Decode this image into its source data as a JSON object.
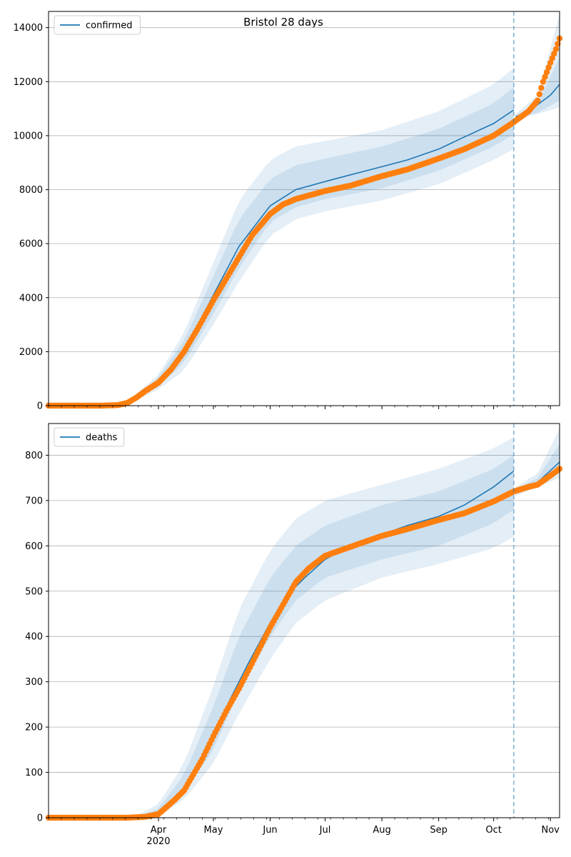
{
  "figure": {
    "title": "Bristol 28 days"
  },
  "colors": {
    "model": "#1f77b4",
    "observed": "#ff7f0e",
    "band": "#1f77b4",
    "grid": "#b0b0b0",
    "forecast_line": "#1f77b4"
  },
  "chart_data": [
    {
      "type": "line",
      "name": "confirmed-panel",
      "legend": "confirmed",
      "legend_position": "top-left",
      "grid": "y",
      "x_axis": {
        "type": "date",
        "range": [
          "2020-02-01",
          "2020-11-06"
        ],
        "ticks": [
          {
            "date": "2020-04-01",
            "label": "Apr"
          },
          {
            "date": "2020-05-01",
            "label": "May"
          },
          {
            "date": "2020-06-01",
            "label": "Jun"
          },
          {
            "date": "2020-07-01",
            "label": "Jul"
          },
          {
            "date": "2020-08-01",
            "label": "Aug"
          },
          {
            "date": "2020-09-01",
            "label": "Sep"
          },
          {
            "date": "2020-10-01",
            "label": "Oct"
          },
          {
            "date": "2020-11-01",
            "label": "Nov"
          }
        ],
        "year_label": "2020"
      },
      "y_axis": {
        "range": [
          0,
          14600
        ],
        "ticks": [
          0,
          2000,
          4000,
          6000,
          8000,
          10000,
          12000,
          14000
        ]
      },
      "forecast_start": "2020-10-12",
      "model_line": [
        [
          "2020-02-01",
          0
        ],
        [
          "2020-03-01",
          0
        ],
        [
          "2020-03-15",
          100
        ],
        [
          "2020-03-25",
          500
        ],
        [
          "2020-04-01",
          900
        ],
        [
          "2020-04-15",
          2000
        ],
        [
          "2020-05-01",
          4100
        ],
        [
          "2020-05-15",
          5900
        ],
        [
          "2020-06-01",
          7400
        ],
        [
          "2020-06-15",
          8000
        ],
        [
          "2020-07-01",
          8300
        ],
        [
          "2020-07-15",
          8550
        ],
        [
          "2020-08-01",
          8850
        ],
        [
          "2020-08-15",
          9100
        ],
        [
          "2020-09-01",
          9500
        ],
        [
          "2020-09-15",
          9950
        ],
        [
          "2020-10-01",
          10450
        ],
        [
          "2020-10-12",
          10950
        ],
        [
          "2020-10-13",
          10700
        ],
        [
          "2020-10-20",
          10900
        ],
        [
          "2020-11-01",
          11500
        ],
        [
          "2020-11-06",
          11900
        ]
      ],
      "bands": [
        {
          "upper": [
            [
              "2020-02-01",
              0
            ],
            [
              "2020-03-15",
              150
            ],
            [
              "2020-04-01",
              1150
            ],
            [
              "2020-04-15",
              2700
            ],
            [
              "2020-05-01",
              5300
            ],
            [
              "2020-05-15",
              7600
            ],
            [
              "2020-06-01",
              9100
            ],
            [
              "2020-06-15",
              9600
            ],
            [
              "2020-07-01",
              9800
            ],
            [
              "2020-08-01",
              10200
            ],
            [
              "2020-09-01",
              10900
            ],
            [
              "2020-10-01",
              11900
            ],
            [
              "2020-10-12",
              12500
            ],
            [
              "2020-10-13",
              10800
            ],
            [
              "2020-10-25",
              11500
            ],
            [
              "2020-11-06",
              14500
            ]
          ],
          "lower": [
            [
              "2020-02-01",
              0
            ],
            [
              "2020-03-15",
              50
            ],
            [
              "2020-04-01",
              600
            ],
            [
              "2020-04-15",
              1300
            ],
            [
              "2020-05-01",
              3000
            ],
            [
              "2020-05-15",
              4600
            ],
            [
              "2020-06-01",
              6300
            ],
            [
              "2020-06-15",
              6900
            ],
            [
              "2020-07-01",
              7200
            ],
            [
              "2020-08-01",
              7600
            ],
            [
              "2020-09-01",
              8200
            ],
            [
              "2020-10-01",
              9100
            ],
            [
              "2020-10-12",
              9500
            ],
            [
              "2020-10-13",
              10600
            ],
            [
              "2020-10-25",
              10800
            ],
            [
              "2020-11-06",
              11050
            ]
          ]
        },
        {
          "upper": [
            [
              "2020-02-01",
              0
            ],
            [
              "2020-03-15",
              120
            ],
            [
              "2020-04-01",
              1050
            ],
            [
              "2020-04-15",
              2400
            ],
            [
              "2020-05-01",
              4800
            ],
            [
              "2020-05-15",
              6900
            ],
            [
              "2020-06-01",
              8400
            ],
            [
              "2020-06-15",
              8900
            ],
            [
              "2020-07-01",
              9150
            ],
            [
              "2020-08-01",
              9600
            ],
            [
              "2020-09-01",
              10250
            ],
            [
              "2020-10-01",
              11200
            ],
            [
              "2020-10-12",
              11800
            ],
            [
              "2020-10-13",
              10750
            ],
            [
              "2020-10-25",
              11200
            ],
            [
              "2020-11-06",
              12900
            ]
          ],
          "lower": [
            [
              "2020-02-01",
              0
            ],
            [
              "2020-03-15",
              70
            ],
            [
              "2020-04-01",
              700
            ],
            [
              "2020-04-15",
              1600
            ],
            [
              "2020-05-01",
              3400
            ],
            [
              "2020-05-15",
              5100
            ],
            [
              "2020-06-01",
              6800
            ],
            [
              "2020-06-15",
              7350
            ],
            [
              "2020-07-01",
              7650
            ],
            [
              "2020-08-01",
              8050
            ],
            [
              "2020-09-01",
              8700
            ],
            [
              "2020-10-01",
              9600
            ],
            [
              "2020-10-12",
              10050
            ],
            [
              "2020-10-13",
              10650
            ],
            [
              "2020-10-25",
              10850
            ],
            [
              "2020-11-06",
              11300
            ]
          ]
        }
      ],
      "observed": [
        [
          "2020-02-01",
          0
        ],
        [
          "2020-03-01",
          0
        ],
        [
          "2020-03-10",
          20
        ],
        [
          "2020-03-15",
          100
        ],
        [
          "2020-03-20",
          300
        ],
        [
          "2020-03-25",
          550
        ],
        [
          "2020-04-01",
          850
        ],
        [
          "2020-04-08",
          1350
        ],
        [
          "2020-04-15",
          2000
        ],
        [
          "2020-04-22",
          2800
        ],
        [
          "2020-05-01",
          3900
        ],
        [
          "2020-05-08",
          4700
        ],
        [
          "2020-05-15",
          5500
        ],
        [
          "2020-05-22",
          6300
        ],
        [
          "2020-06-01",
          7100
        ],
        [
          "2020-06-08",
          7450
        ],
        [
          "2020-06-15",
          7650
        ],
        [
          "2020-07-01",
          7950
        ],
        [
          "2020-07-15",
          8150
        ],
        [
          "2020-08-01",
          8500
        ],
        [
          "2020-08-15",
          8750
        ],
        [
          "2020-09-01",
          9150
        ],
        [
          "2020-09-15",
          9500
        ],
        [
          "2020-10-01",
          10000
        ],
        [
          "2020-10-12",
          10500
        ],
        [
          "2020-10-20",
          10900
        ],
        [
          "2020-10-25",
          11300
        ],
        [
          "2020-10-28",
          12000
        ],
        [
          "2020-11-01",
          12700
        ],
        [
          "2020-11-04",
          13200
        ],
        [
          "2020-11-06",
          13600
        ]
      ]
    },
    {
      "type": "line",
      "name": "deaths-panel",
      "legend": "deaths",
      "legend_position": "top-left",
      "grid": "y",
      "x_axis": {
        "type": "date",
        "range": [
          "2020-02-01",
          "2020-11-06"
        ],
        "ticks": [
          {
            "date": "2020-04-01",
            "label": "Apr"
          },
          {
            "date": "2020-05-01",
            "label": "May"
          },
          {
            "date": "2020-06-01",
            "label": "Jun"
          },
          {
            "date": "2020-07-01",
            "label": "Jul"
          },
          {
            "date": "2020-08-01",
            "label": "Aug"
          },
          {
            "date": "2020-09-01",
            "label": "Sep"
          },
          {
            "date": "2020-10-01",
            "label": "Oct"
          },
          {
            "date": "2020-11-01",
            "label": "Nov"
          }
        ],
        "year_label": "2020"
      },
      "y_axis": {
        "range": [
          0,
          870
        ],
        "ticks": [
          0,
          100,
          200,
          300,
          400,
          500,
          600,
          700,
          800
        ]
      },
      "forecast_start": "2020-10-12",
      "model_line": [
        [
          "2020-02-01",
          0
        ],
        [
          "2020-03-20",
          0
        ],
        [
          "2020-04-01",
          10
        ],
        [
          "2020-04-10",
          40
        ],
        [
          "2020-04-20",
          90
        ],
        [
          "2020-05-01",
          180
        ],
        [
          "2020-05-10",
          260
        ],
        [
          "2020-05-20",
          340
        ],
        [
          "2020-06-01",
          430
        ],
        [
          "2020-06-10",
          490
        ],
        [
          "2020-06-20",
          530
        ],
        [
          "2020-07-01",
          570
        ],
        [
          "2020-07-15",
          600
        ],
        [
          "2020-08-01",
          625
        ],
        [
          "2020-08-15",
          645
        ],
        [
          "2020-09-01",
          665
        ],
        [
          "2020-09-15",
          690
        ],
        [
          "2020-10-01",
          730
        ],
        [
          "2020-10-12",
          765
        ],
        [
          "2020-10-13",
          720
        ],
        [
          "2020-10-25",
          740
        ],
        [
          "2020-11-06",
          785
        ]
      ],
      "bands": [
        {
          "upper": [
            [
              "2020-02-01",
              0
            ],
            [
              "2020-03-20",
              5
            ],
            [
              "2020-04-01",
              30
            ],
            [
              "2020-04-15",
              120
            ],
            [
              "2020-05-01",
              290
            ],
            [
              "2020-05-15",
              460
            ],
            [
              "2020-06-01",
              590
            ],
            [
              "2020-06-15",
              660
            ],
            [
              "2020-07-01",
              700
            ],
            [
              "2020-08-01",
              735
            ],
            [
              "2020-09-01",
              770
            ],
            [
              "2020-10-01",
              815
            ],
            [
              "2020-10-12",
              840
            ],
            [
              "2020-10-13",
              730
            ],
            [
              "2020-10-25",
              760
            ],
            [
              "2020-11-06",
              860
            ]
          ],
          "lower": [
            [
              "2020-02-01",
              0
            ],
            [
              "2020-03-20",
              0
            ],
            [
              "2020-04-01",
              3
            ],
            [
              "2020-04-15",
              40
            ],
            [
              "2020-05-01",
              120
            ],
            [
              "2020-05-15",
              230
            ],
            [
              "2020-06-01",
              350
            ],
            [
              "2020-06-15",
              430
            ],
            [
              "2020-07-01",
              480
            ],
            [
              "2020-08-01",
              530
            ],
            [
              "2020-09-01",
              560
            ],
            [
              "2020-10-01",
              595
            ],
            [
              "2020-10-12",
              620
            ],
            [
              "2020-10-13",
              710
            ],
            [
              "2020-10-25",
              730
            ],
            [
              "2020-11-06",
              750
            ]
          ]
        },
        {
          "upper": [
            [
              "2020-02-01",
              0
            ],
            [
              "2020-03-20",
              3
            ],
            [
              "2020-04-01",
              20
            ],
            [
              "2020-04-15",
              95
            ],
            [
              "2020-05-01",
              245
            ],
            [
              "2020-05-15",
              400
            ],
            [
              "2020-06-01",
              530
            ],
            [
              "2020-06-15",
              600
            ],
            [
              "2020-07-01",
              645
            ],
            [
              "2020-08-01",
              690
            ],
            [
              "2020-09-01",
              720
            ],
            [
              "2020-10-01",
              770
            ],
            [
              "2020-10-12",
              800
            ],
            [
              "2020-10-13",
              725
            ],
            [
              "2020-10-25",
              750
            ],
            [
              "2020-11-06",
              825
            ]
          ],
          "lower": [
            [
              "2020-02-01",
              0
            ],
            [
              "2020-03-20",
              0
            ],
            [
              "2020-04-01",
              5
            ],
            [
              "2020-04-15",
              55
            ],
            [
              "2020-05-01",
              150
            ],
            [
              "2020-05-15",
              280
            ],
            [
              "2020-06-01",
              400
            ],
            [
              "2020-06-15",
              480
            ],
            [
              "2020-07-01",
              530
            ],
            [
              "2020-08-01",
              570
            ],
            [
              "2020-09-01",
              600
            ],
            [
              "2020-10-01",
              650
            ],
            [
              "2020-10-12",
              680
            ],
            [
              "2020-10-13",
              715
            ],
            [
              "2020-10-25",
              735
            ],
            [
              "2020-11-06",
              765
            ]
          ]
        }
      ],
      "observed": [
        [
          "2020-02-01",
          0
        ],
        [
          "2020-03-15",
          0
        ],
        [
          "2020-03-25",
          2
        ],
        [
          "2020-04-01",
          8
        ],
        [
          "2020-04-05",
          22
        ],
        [
          "2020-04-10",
          40
        ],
        [
          "2020-04-15",
          60
        ],
        [
          "2020-04-20",
          95
        ],
        [
          "2020-04-25",
          130
        ],
        [
          "2020-05-01",
          180
        ],
        [
          "2020-05-08",
          235
        ],
        [
          "2020-05-15",
          285
        ],
        [
          "2020-05-22",
          340
        ],
        [
          "2020-06-01",
          420
        ],
        [
          "2020-06-08",
          470
        ],
        [
          "2020-06-15",
          520
        ],
        [
          "2020-06-22",
          550
        ],
        [
          "2020-07-01",
          578
        ],
        [
          "2020-07-15",
          598
        ],
        [
          "2020-08-01",
          622
        ],
        [
          "2020-08-15",
          637
        ],
        [
          "2020-09-01",
          657
        ],
        [
          "2020-09-15",
          672
        ],
        [
          "2020-10-01",
          698
        ],
        [
          "2020-10-12",
          720
        ],
        [
          "2020-10-20",
          730
        ],
        [
          "2020-10-25",
          735
        ],
        [
          "2020-11-01",
          755
        ],
        [
          "2020-11-06",
          770
        ]
      ]
    }
  ]
}
